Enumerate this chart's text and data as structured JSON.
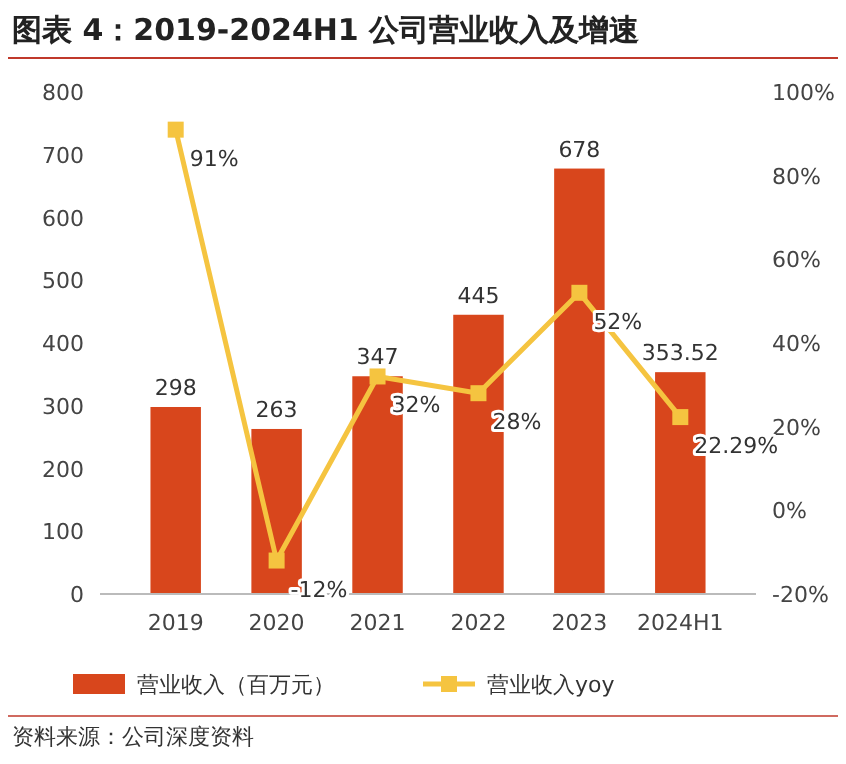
{
  "chart_data": {
    "type": "bar",
    "title": "图表 4：2019-2024H1 公司营业收入及增速",
    "categories": [
      "2019",
      "2020",
      "2021",
      "2022",
      "2023",
      "2024H1"
    ],
    "series": [
      {
        "name": "营业收入（百万元）",
        "color": "#d8461c",
        "values": [
          298,
          263,
          347,
          445,
          678,
          353.52
        ],
        "value_labels": [
          "298",
          "263",
          "347",
          "445",
          "678",
          "353.52"
        ]
      },
      {
        "name": "营业收入yoy",
        "type": "line",
        "axis": "y2",
        "color": "#f5c440",
        "marker": "square",
        "values": [
          91,
          -12,
          32,
          28,
          52,
          22.29
        ],
        "value_labels": [
          "91%",
          "-12%",
          "32%",
          "28%",
          "52%",
          "22.29%"
        ]
      }
    ],
    "ylim": [
      0,
      800
    ],
    "yticks": [
      0,
      100,
      200,
      300,
      400,
      500,
      600,
      700,
      800
    ],
    "y2lim": [
      -20,
      100
    ],
    "y2ticks": [
      {
        "value": -20,
        "label": "-20%"
      },
      {
        "value": 0,
        "label": "0%"
      },
      {
        "value": 20,
        "label": "20%"
      },
      {
        "value": 40,
        "label": "40%"
      },
      {
        "value": 60,
        "label": "60%"
      },
      {
        "value": 80,
        "label": "80%"
      },
      {
        "value": 100,
        "label": "100%"
      }
    ],
    "legend": "bottom",
    "grid": false,
    "annotations": [
      "资料来源：公司深度资料"
    ]
  }
}
